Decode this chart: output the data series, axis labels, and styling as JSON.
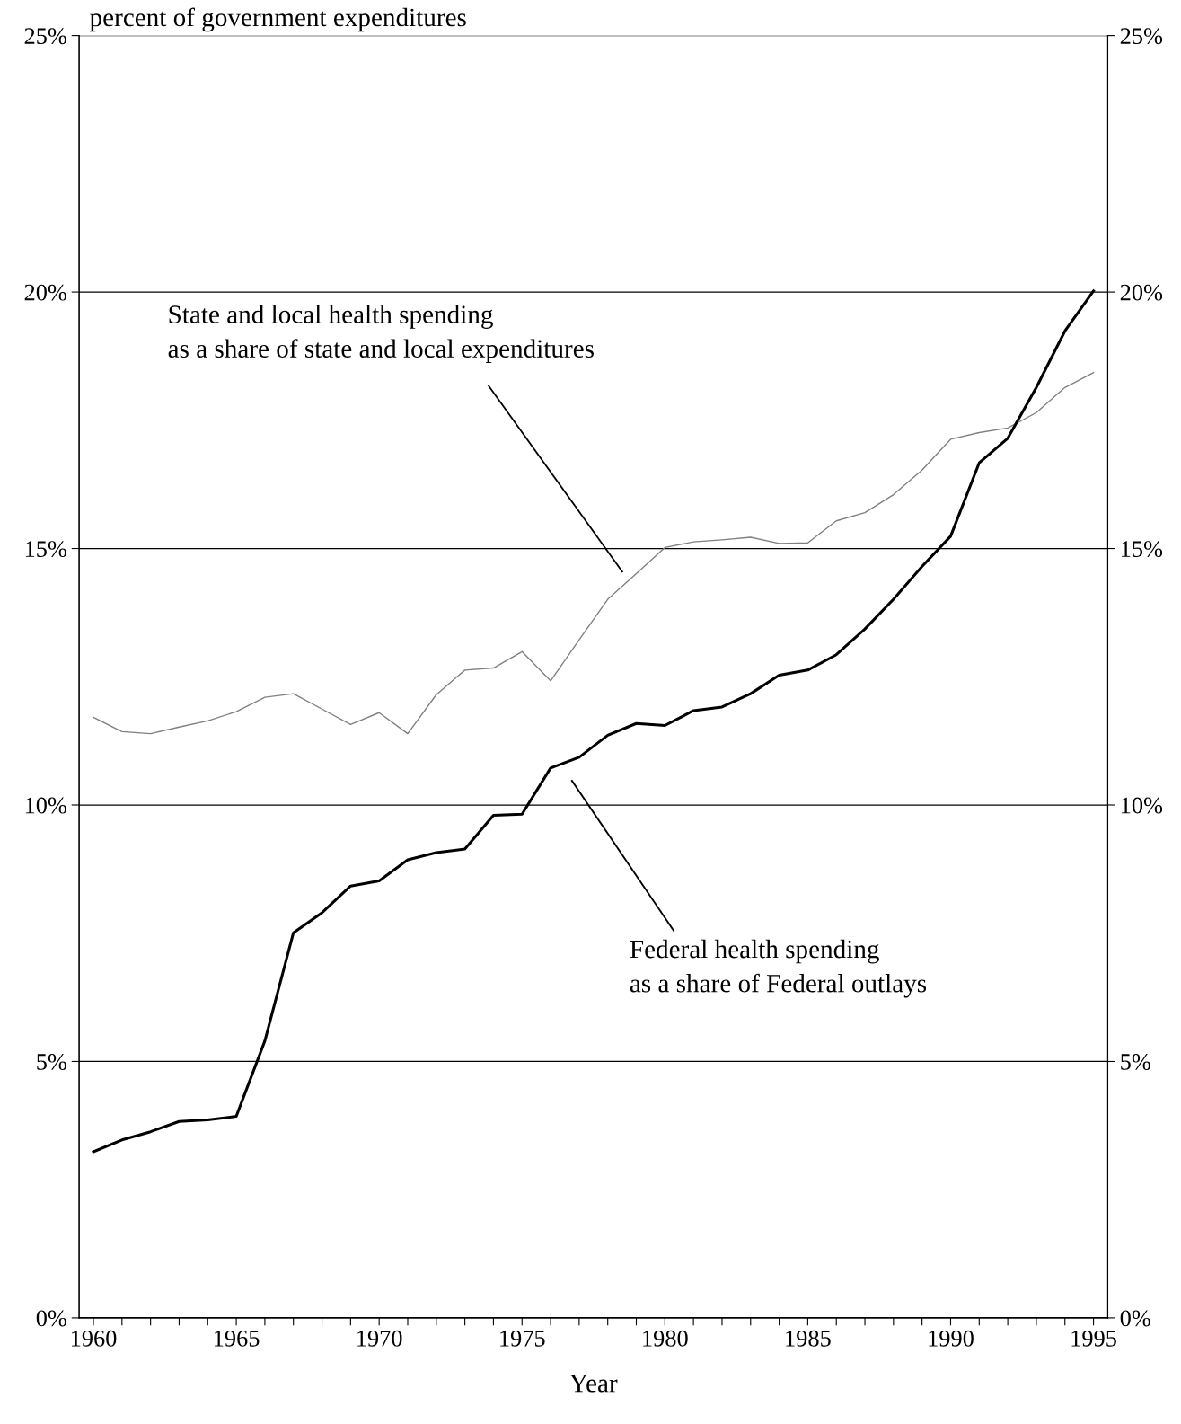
{
  "chart_data": {
    "type": "line",
    "ylabel": "percent of government expenditures",
    "xlabel": "Year",
    "x": [
      1960,
      1961,
      1962,
      1963,
      1964,
      1965,
      1966,
      1967,
      1968,
      1969,
      1970,
      1971,
      1972,
      1973,
      1974,
      1975,
      1976,
      1977,
      1978,
      1979,
      1980,
      1981,
      1982,
      1983,
      1984,
      1985,
      1986,
      1987,
      1988,
      1989,
      1990,
      1991,
      1992,
      1993,
      1994,
      1995
    ],
    "series": [
      {
        "color": "#808080",
        "values": [
          11.71,
          11.43,
          11.39,
          11.52,
          11.64,
          11.82,
          12.1,
          12.17,
          11.87,
          11.57,
          11.8,
          11.39,
          12.15,
          12.63,
          12.67,
          12.99,
          12.42,
          13.22,
          14.01,
          14.51,
          15.02,
          15.13,
          15.17,
          15.22,
          15.1,
          15.11,
          15.54,
          15.7,
          16.05,
          16.53,
          17.13,
          17.26,
          17.35,
          17.65,
          18.14,
          18.43
        ]
      },
      {
        "color": "#000000",
        "values": [
          3.24,
          3.47,
          3.63,
          3.83,
          3.86,
          3.93,
          5.4,
          7.51,
          7.9,
          8.42,
          8.52,
          8.93,
          9.07,
          9.14,
          9.8,
          9.82,
          10.72,
          10.93,
          11.36,
          11.59,
          11.55,
          11.84,
          11.91,
          12.17,
          12.53,
          12.63,
          12.93,
          13.43,
          14.01,
          14.65,
          15.24,
          16.67,
          17.15,
          18.14,
          19.24,
          20.02
        ]
      }
    ],
    "annotations": [
      "State and local health spending\nas a share of state and local expenditures",
      "Federal health spending\nas a share of Federal outlays"
    ],
    "xlim": [
      1959.5,
      1995.5
    ],
    "xticks": [
      1960,
      {
        "value": 1961,
        "label": null
      },
      {
        "value": 1962,
        "label": null
      },
      {
        "value": 1963,
        "label": null
      },
      {
        "value": 1964,
        "label": null
      },
      1965,
      {
        "value": 1966,
        "label": null
      },
      {
        "value": 1967,
        "label": null
      },
      {
        "value": 1968,
        "label": null
      },
      {
        "value": 1969,
        "label": null
      },
      1970,
      {
        "value": 1971,
        "label": null
      },
      {
        "value": 1972,
        "label": null
      },
      {
        "value": 1973,
        "label": null
      },
      {
        "value": 1974,
        "label": null
      },
      1975,
      {
        "value": 1976,
        "label": null
      },
      {
        "value": 1977,
        "label": null
      },
      {
        "value": 1978,
        "label": null
      },
      {
        "value": 1979,
        "label": null
      },
      1980,
      {
        "value": 1981,
        "label": null
      },
      {
        "value": 1982,
        "label": null
      },
      {
        "value": 1983,
        "label": null
      },
      {
        "value": 1984,
        "label": null
      },
      1985,
      {
        "value": 1986,
        "label": null
      },
      {
        "value": 1987,
        "label": null
      },
      {
        "value": 1988,
        "label": null
      },
      {
        "value": 1989,
        "label": null
      },
      1990,
      {
        "value": 1991,
        "label": null
      },
      {
        "value": 1992,
        "label": null
      },
      {
        "value": 1993,
        "label": null
      },
      {
        "value": 1994,
        "label": null
      },
      1995
    ],
    "ylim": [
      0,
      25
    ],
    "yticks": [
      {
        "value": 0,
        "label": "0%"
      },
      {
        "value": 5,
        "label": "5%"
      },
      {
        "value": 10,
        "label": "10%"
      },
      {
        "value": 15,
        "label": "15%"
      },
      {
        "value": 20,
        "label": "20%"
      },
      {
        "value": 25,
        "label": "25%"
      }
    ],
    "y2lim": [
      0,
      25
    ],
    "y2ticks": [
      {
        "value": 0,
        "label": "0%"
      },
      {
        "value": 5,
        "label": "5%"
      },
      {
        "value": 10,
        "label": "10%"
      },
      {
        "value": 15,
        "label": "15%"
      },
      {
        "value": 20,
        "label": "20%"
      },
      {
        "value": 25,
        "label": "25%"
      }
    ],
    "grid": "y",
    "legend": false
  }
}
